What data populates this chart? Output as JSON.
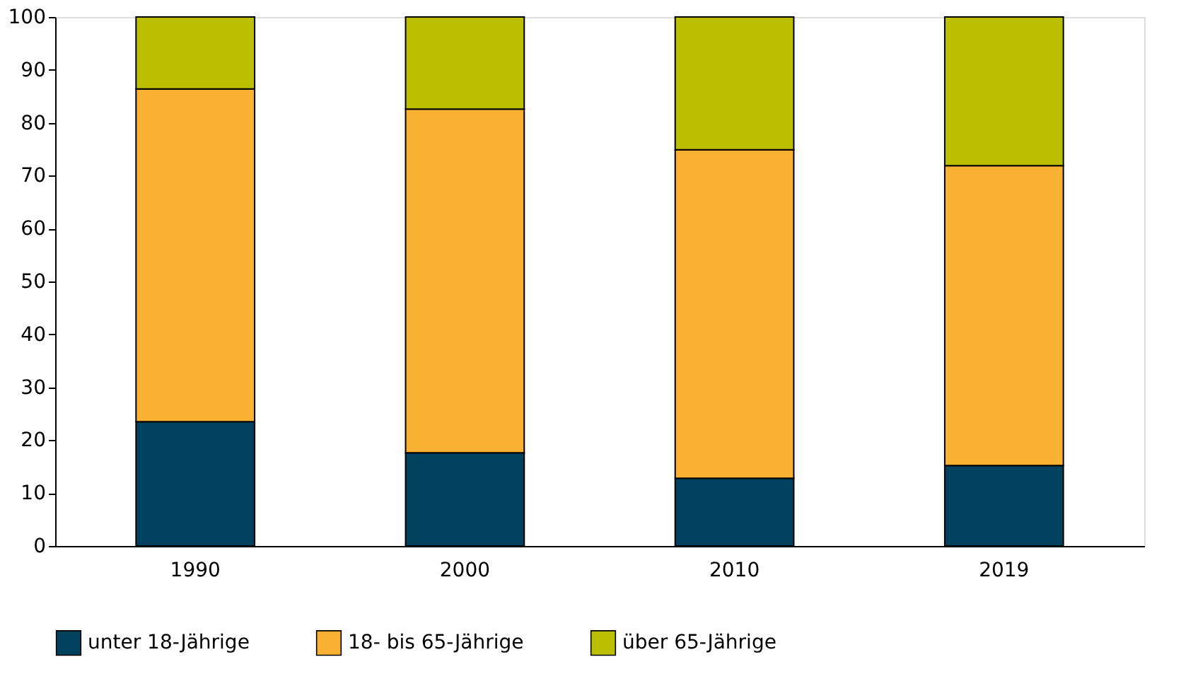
{
  "chart_data": {
    "type": "bar",
    "stacked": true,
    "categories": [
      "1990",
      "2000",
      "2010",
      "2019"
    ],
    "series": [
      {
        "name": "unter 18-Jährige",
        "color": "#00415e",
        "values": [
          23.5,
          17.6,
          12.8,
          15.2
        ]
      },
      {
        "name": "18- bis 65-Jährige",
        "color": "#f8b133",
        "values": [
          62.9,
          65.0,
          62.1,
          56.7
        ]
      },
      {
        "name": "über 65-Jährige",
        "color": "#bcbe00",
        "values": [
          13.6,
          17.4,
          25.1,
          28.1
        ]
      }
    ],
    "ylim": [
      0,
      100
    ],
    "yticks": [
      0,
      10,
      20,
      30,
      40,
      50,
      60,
      70,
      80,
      90,
      100
    ],
    "grid": false,
    "legend": "bottom"
  }
}
